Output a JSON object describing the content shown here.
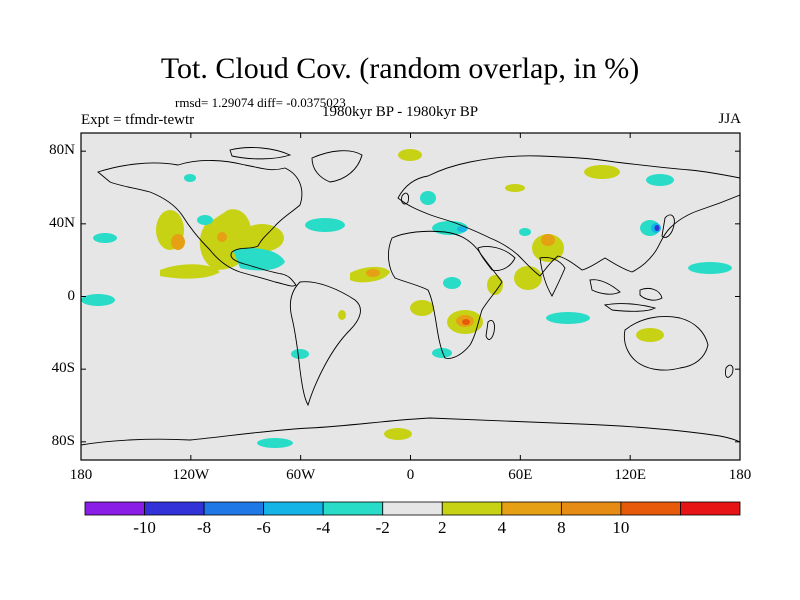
{
  "title": "Tot. Cloud Cov. (random overlap, in %)",
  "stats": "rmsd= 1.29074  diff= -0.0375023",
  "left_label": "Expt = tfmdr-tewtr",
  "center_label": "1980kyr BP - 1980kyr BP",
  "right_label": "JJA",
  "axes": {
    "y_ticks": [
      {
        "label": "80N",
        "lat": 80
      },
      {
        "label": "40N",
        "lat": 40
      },
      {
        "label": "0",
        "lat": 0
      },
      {
        "label": "40S",
        "lat": -40
      },
      {
        "label": "80S",
        "lat": -80
      }
    ],
    "x_ticks": [
      {
        "label": "180",
        "lon": -180
      },
      {
        "label": "120W",
        "lon": -120
      },
      {
        "label": "60W",
        "lon": -60
      },
      {
        "label": "0",
        "lon": 0
      },
      {
        "label": "60E",
        "lon": 60
      },
      {
        "label": "120E",
        "lon": 120
      },
      {
        "label": "180",
        "lon": 180
      }
    ]
  },
  "colorbar": {
    "colors": [
      "#8a1ee6",
      "#3232d8",
      "#1e78e6",
      "#14b4e6",
      "#28dcc8",
      "#e6e6e6",
      "#c8d214",
      "#e6a014",
      "#e68c14",
      "#e65a0a",
      "#e61414"
    ],
    "labels": [
      "-10",
      "-8",
      "-6",
      "-4",
      "-2",
      "2",
      "4",
      "8",
      "10"
    ]
  },
  "colors": {
    "background_field": "#e6e6e6",
    "coastline": "#000000"
  }
}
